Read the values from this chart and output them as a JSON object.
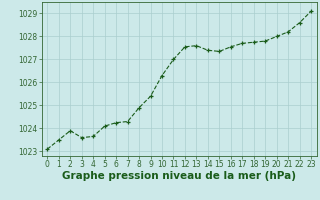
{
  "x": [
    0,
    1,
    2,
    3,
    4,
    5,
    6,
    7,
    8,
    9,
    10,
    11,
    12,
    13,
    14,
    15,
    16,
    17,
    18,
    19,
    20,
    21,
    22,
    23
  ],
  "y": [
    1023.1,
    1023.5,
    1023.9,
    1023.6,
    1023.65,
    1024.1,
    1024.25,
    1024.3,
    1024.9,
    1025.4,
    1026.3,
    1027.0,
    1027.55,
    1027.6,
    1027.4,
    1027.35,
    1027.55,
    1027.7,
    1027.75,
    1027.8,
    1028.0,
    1028.2,
    1028.6,
    1029.1
  ],
  "bg_color": "#cce9e9",
  "grid_color": "#aacece",
  "line_color": "#1a5c1a",
  "marker_color": "#1a5c1a",
  "xlabel": "Graphe pression niveau de la mer (hPa)",
  "xlabel_color": "#1a5c1a",
  "ylim": [
    1022.8,
    1029.5
  ],
  "yticks": [
    1023,
    1024,
    1025,
    1026,
    1027,
    1028,
    1029
  ],
  "xticks": [
    0,
    1,
    2,
    3,
    4,
    5,
    6,
    7,
    8,
    9,
    10,
    11,
    12,
    13,
    14,
    15,
    16,
    17,
    18,
    19,
    20,
    21,
    22,
    23
  ],
  "tick_fontsize": 5.5,
  "xlabel_fontsize": 7.5,
  "spine_color": "#336633"
}
